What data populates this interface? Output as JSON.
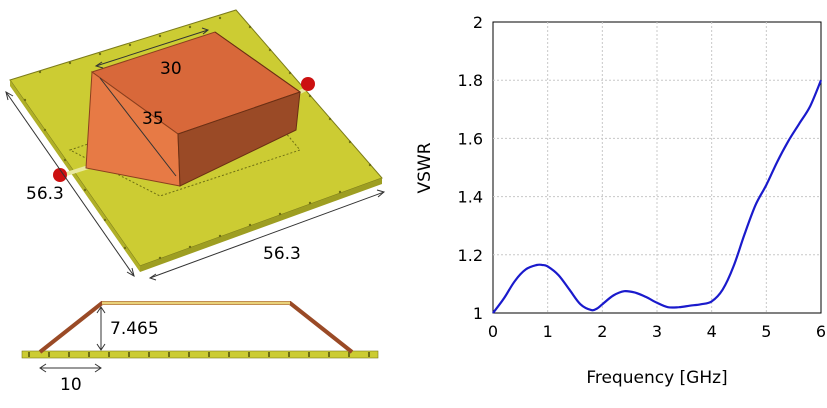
{
  "antenna": {
    "dimensions": {
      "top_width": "30",
      "slant_length": "35",
      "board_left": "56.3",
      "board_bottom": "56.3",
      "height": "7.465",
      "offset": "10"
    },
    "colors": {
      "substrate": "#cccc33",
      "copper_front": "#e77a45",
      "copper_top": "#d8683a",
      "copper_side": "#9a4a26",
      "port": "#cc1111"
    }
  },
  "chart_data": {
    "type": "line",
    "title": "",
    "xlabel": "Frequency [GHz]",
    "ylabel": "VSWR",
    "xlim": [
      0,
      6
    ],
    "ylim": [
      1,
      2
    ],
    "xticks": [
      0,
      1,
      2,
      3,
      4,
      5,
      6
    ],
    "yticks": [
      1,
      1.2,
      1.4,
      1.6,
      1.8,
      2
    ],
    "ytick_labels": [
      "1",
      "1.2",
      "1.4",
      "1.6",
      "1.8",
      "2"
    ],
    "grid": true,
    "series": [
      {
        "name": "",
        "color": "#1a1acc",
        "x": [
          0,
          0.2,
          0.4,
          0.6,
          0.8,
          0.9,
          1.0,
          1.2,
          1.4,
          1.6,
          1.8,
          1.9,
          2.0,
          2.2,
          2.4,
          2.6,
          2.8,
          3.0,
          3.2,
          3.4,
          3.6,
          3.8,
          4.0,
          4.2,
          4.4,
          4.6,
          4.8,
          5.0,
          5.2,
          5.4,
          5.6,
          5.8,
          6.0
        ],
        "y": [
          1.0,
          1.05,
          1.11,
          1.15,
          1.165,
          1.165,
          1.16,
          1.13,
          1.08,
          1.03,
          1.01,
          1.015,
          1.03,
          1.06,
          1.075,
          1.07,
          1.055,
          1.035,
          1.02,
          1.02,
          1.025,
          1.03,
          1.04,
          1.08,
          1.16,
          1.27,
          1.37,
          1.44,
          1.52,
          1.59,
          1.65,
          1.71,
          1.8
        ]
      }
    ]
  }
}
